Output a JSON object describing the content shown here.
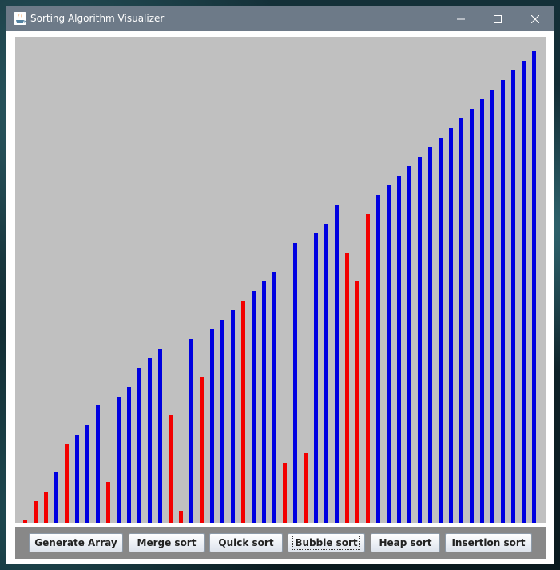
{
  "window": {
    "title": "Sorting Algorithm Visualizer",
    "icon": "java-icon",
    "controls": [
      "minimize-icon",
      "maximize-icon",
      "close-icon"
    ]
  },
  "visualizer": {
    "background": "#c0c0c0",
    "bar_colors": {
      "unsorted": "#0000e0",
      "highlight": "#f20000"
    },
    "max_value": 100,
    "bars": [
      {
        "value": 0.5,
        "state": "red"
      },
      {
        "value": 4.4,
        "state": "red"
      },
      {
        "value": 6.4,
        "state": "red"
      },
      {
        "value": 10.3,
        "state": "blue"
      },
      {
        "value": 16.2,
        "state": "red"
      },
      {
        "value": 18.1,
        "state": "blue"
      },
      {
        "value": 20.1,
        "state": "blue"
      },
      {
        "value": 24.1,
        "state": "blue"
      },
      {
        "value": 8.4,
        "state": "red"
      },
      {
        "value": 26.0,
        "state": "blue"
      },
      {
        "value": 28.0,
        "state": "blue"
      },
      {
        "value": 31.9,
        "state": "blue"
      },
      {
        "value": 33.9,
        "state": "blue"
      },
      {
        "value": 35.9,
        "state": "blue"
      },
      {
        "value": 22.2,
        "state": "red"
      },
      {
        "value": 2.4,
        "state": "red"
      },
      {
        "value": 37.8,
        "state": "blue"
      },
      {
        "value": 29.9,
        "state": "red"
      },
      {
        "value": 39.8,
        "state": "blue"
      },
      {
        "value": 41.8,
        "state": "blue"
      },
      {
        "value": 43.7,
        "state": "blue"
      },
      {
        "value": 45.7,
        "state": "red"
      },
      {
        "value": 47.7,
        "state": "blue"
      },
      {
        "value": 49.7,
        "state": "blue"
      },
      {
        "value": 51.6,
        "state": "blue"
      },
      {
        "value": 12.3,
        "state": "red"
      },
      {
        "value": 57.6,
        "state": "blue"
      },
      {
        "value": 14.3,
        "state": "red"
      },
      {
        "value": 59.5,
        "state": "blue"
      },
      {
        "value": 61.5,
        "state": "blue"
      },
      {
        "value": 65.5,
        "state": "blue"
      },
      {
        "value": 55.6,
        "state": "red"
      },
      {
        "value": 49.7,
        "state": "red"
      },
      {
        "value": 63.5,
        "state": "red"
      },
      {
        "value": 67.4,
        "state": "blue"
      },
      {
        "value": 69.4,
        "state": "blue"
      },
      {
        "value": 71.4,
        "state": "blue"
      },
      {
        "value": 73.3,
        "state": "blue"
      },
      {
        "value": 75.3,
        "state": "blue"
      },
      {
        "value": 77.3,
        "state": "blue"
      },
      {
        "value": 79.3,
        "state": "blue"
      },
      {
        "value": 81.2,
        "state": "blue"
      },
      {
        "value": 83.2,
        "state": "blue"
      },
      {
        "value": 85.2,
        "state": "blue"
      },
      {
        "value": 87.2,
        "state": "blue"
      },
      {
        "value": 89.1,
        "state": "blue"
      },
      {
        "value": 91.1,
        "state": "blue"
      },
      {
        "value": 93.1,
        "state": "blue"
      },
      {
        "value": 95.1,
        "state": "blue"
      },
      {
        "value": 97.0,
        "state": "blue"
      }
    ]
  },
  "controls": {
    "generate_label": "Generate Array",
    "merge_label": "Merge sort",
    "quick_label": "Quick sort",
    "bubble_label": "Bubble sort",
    "heap_label": "Heap sort",
    "insertion_label": "Insertion sort",
    "focused": "bubble"
  }
}
